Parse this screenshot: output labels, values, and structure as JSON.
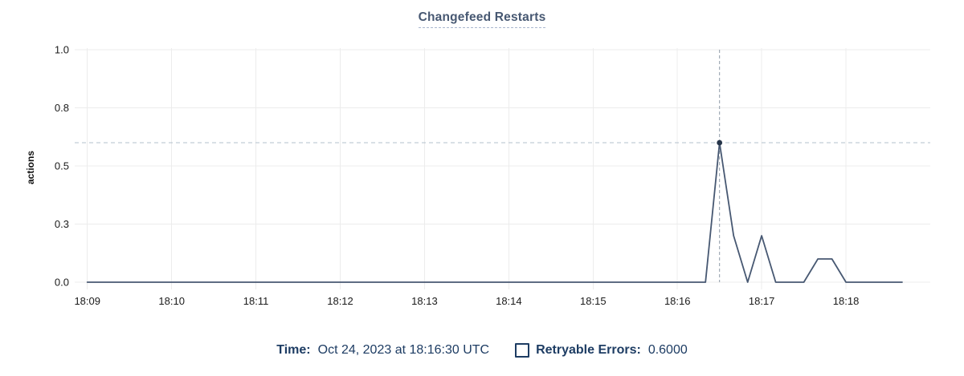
{
  "chart": {
    "title": "Changefeed Restarts",
    "y_axis_label": "actions"
  },
  "chart_data": {
    "type": "line",
    "title": "Changefeed Restarts",
    "xlabel": "",
    "ylabel": "actions",
    "ylim": [
      0,
      1.0
    ],
    "xlim_time": [
      "18:08:51",
      "18:19:00"
    ],
    "grid": true,
    "y_ticks": [
      {
        "v": 0,
        "label": "0.0"
      },
      {
        "v": 0.25,
        "label": "0.3"
      },
      {
        "v": 0.5,
        "label": "0.5"
      },
      {
        "v": 0.75,
        "label": "0.8"
      },
      {
        "v": 1,
        "label": "1.0"
      }
    ],
    "x_ticks": [
      "18:09",
      "18:10",
      "18:11",
      "18:12",
      "18:13",
      "18:14",
      "18:15",
      "18:16",
      "18:17",
      "18:18"
    ],
    "series": [
      {
        "name": "Retryable Errors",
        "color": "#475872",
        "points": [
          [
            "18:09:00",
            0
          ],
          [
            "18:16:20",
            0
          ],
          [
            "18:16:30",
            0.6
          ],
          [
            "18:16:40",
            0.2
          ],
          [
            "18:16:50",
            0
          ],
          [
            "18:17:00",
            0.2
          ],
          [
            "18:17:10",
            0
          ],
          [
            "18:17:30",
            0
          ],
          [
            "18:17:40",
            0.1
          ],
          [
            "18:17:50",
            0.1
          ],
          [
            "18:18:00",
            0
          ],
          [
            "18:18:40",
            0
          ]
        ]
      }
    ],
    "crosshair": {
      "time": "18:16:30",
      "value": 0.6
    },
    "legend_position": "bottom-center"
  },
  "legend": {
    "time_label": "Time:",
    "time_value": "Oct 24, 2023 at 18:16:30 UTC",
    "series_label": "Retryable Errors:",
    "series_value": "0.6000"
  },
  "colors": {
    "title": "#475872",
    "series_line": "#475872",
    "crosshair_dot": "#26354a",
    "legend_text": "#1d3c63",
    "gridline": "#ececec"
  }
}
